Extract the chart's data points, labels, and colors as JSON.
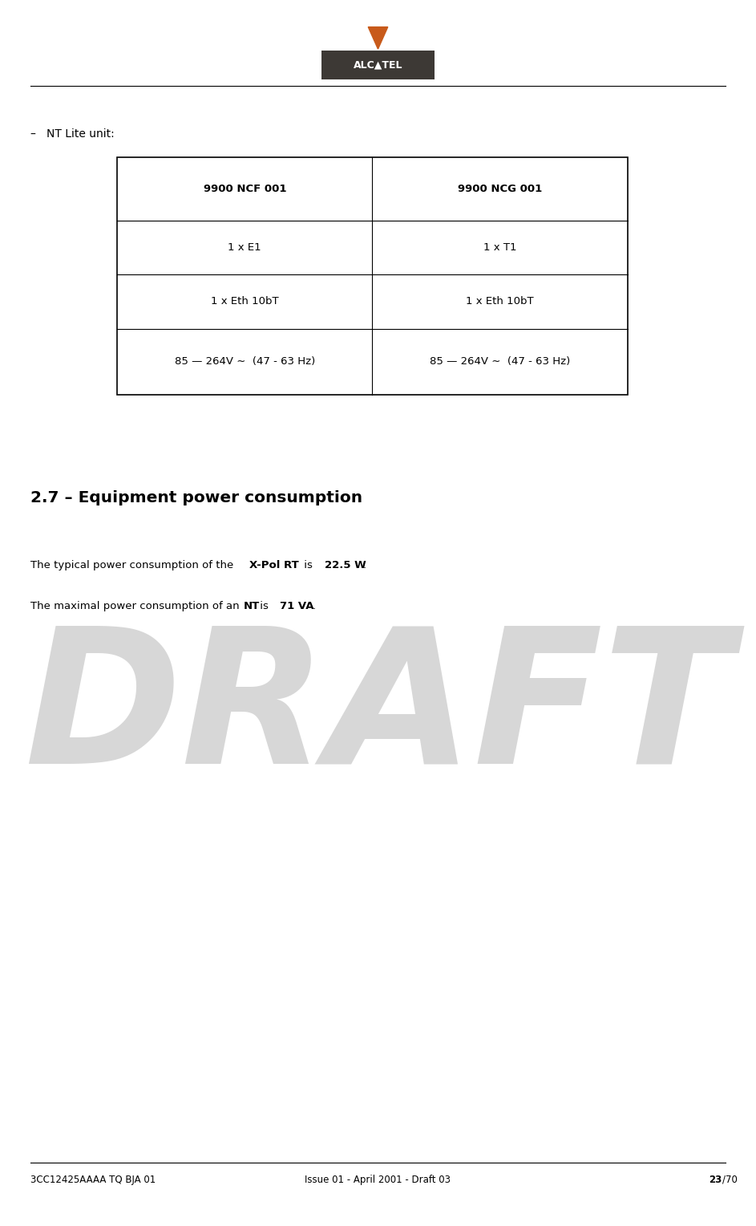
{
  "page_width": 9.43,
  "page_height": 15.28,
  "background_color": "#ffffff",
  "logo_box_color": "#3d3935",
  "logo_text_color": "#ffffff",
  "arrow_color": "#c85a1a",
  "bullet_label": "–   NT Lite unit:",
  "table_col1_header": "9900 NCF 001",
  "table_col2_header": "9900 NCG 001",
  "table_rows": [
    [
      "1 x E1",
      "1 x T1"
    ],
    [
      "1 x Eth 10bT",
      "1 x Eth 10bT"
    ],
    [
      "85 — 264V ∼  (47 - 63 Hz)",
      "85 — 264V ∼  (47 - 63 Hz)"
    ]
  ],
  "section_title": "2.7 – Equipment power consumption",
  "draft_text": "DRAFT",
  "draft_color": "#a0a0a0",
  "draft_alpha": 0.42,
  "footer_left": "3CC12425AAAA TQ BJA 01",
  "footer_center": "Issue 01 - April 2001 - Draft 03",
  "footer_color": "#000000"
}
